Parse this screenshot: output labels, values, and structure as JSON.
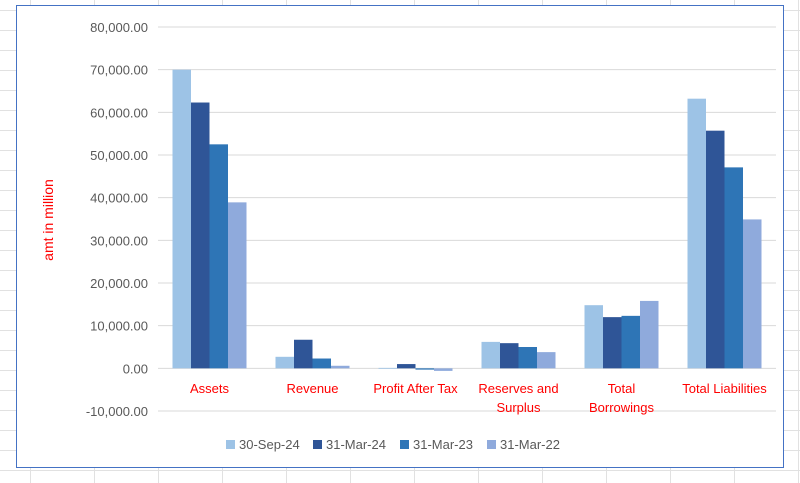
{
  "chart_data": {
    "type": "bar",
    "title": "",
    "xlabel": "",
    "ylabel": "amt in million",
    "ylim": [
      -10000,
      80000
    ],
    "yticks": [
      -10000,
      0,
      10000,
      20000,
      30000,
      40000,
      50000,
      60000,
      70000,
      80000
    ],
    "ytick_labels": [
      "-10,000.00",
      "0.00",
      "10,000.00",
      "20,000.00",
      "30,000.00",
      "40,000.00",
      "50,000.00",
      "60,000.00",
      "70,000.00",
      "80,000.00"
    ],
    "grid": true,
    "legend_position": "bottom",
    "categories": [
      [
        "Assets"
      ],
      [
        "Revenue"
      ],
      [
        "Profit After Tax"
      ],
      [
        "Reserves and",
        "Surplus"
      ],
      [
        "Total",
        "Borrowings"
      ],
      [
        "Total Liabilities"
      ]
    ],
    "series": [
      {
        "name": "30-Sep-24",
        "color": "#9dc3e6",
        "values": [
          70000,
          2700,
          100,
          6200,
          14800,
          63200
        ]
      },
      {
        "name": "31-Mar-24",
        "color": "#2f5597",
        "values": [
          62300,
          6700,
          1000,
          5900,
          12000,
          55700
        ]
      },
      {
        "name": "31-Mar-23",
        "color": "#2e75b6",
        "values": [
          52500,
          2300,
          -300,
          5000,
          12300,
          47100
        ]
      },
      {
        "name": "31-Mar-22",
        "color": "#8faadc",
        "values": [
          38900,
          600,
          -600,
          3800,
          15800,
          34900
        ]
      }
    ]
  }
}
